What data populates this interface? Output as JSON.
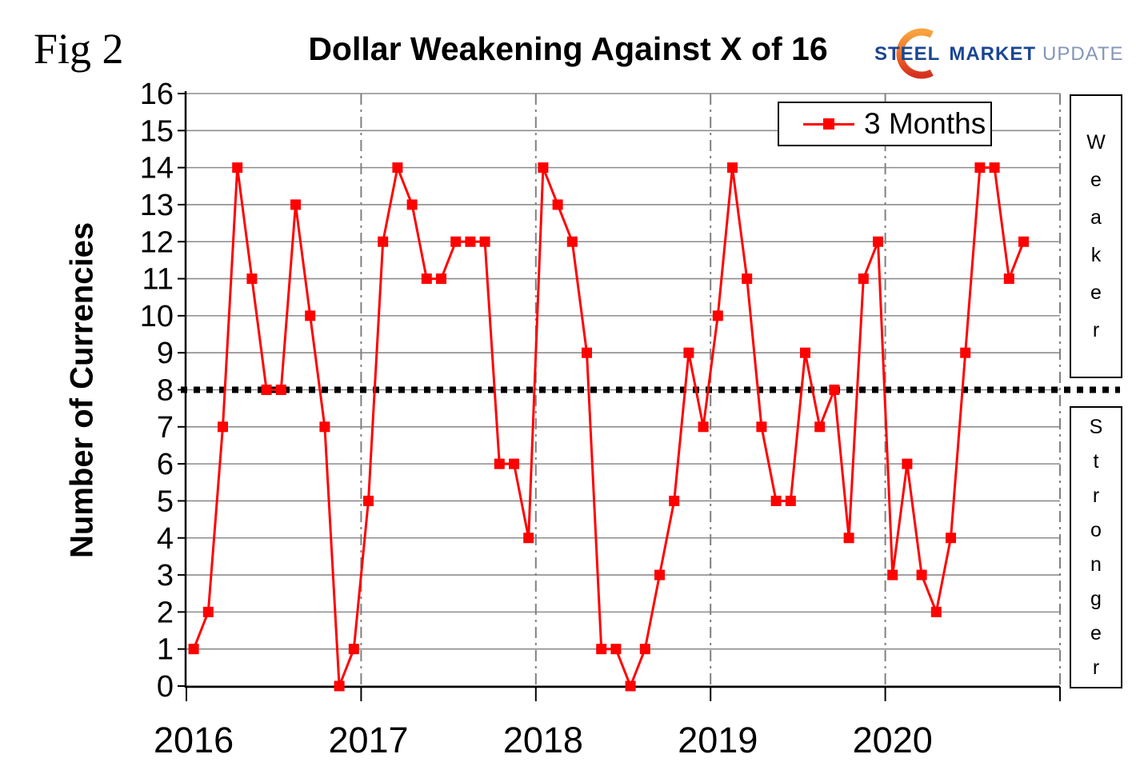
{
  "header": {
    "fig_label": "Fig 2",
    "title": "Dollar Weakening Against X of 16"
  },
  "logo": {
    "steel": "STEEL",
    "market": "MARKET",
    "update": "UPDATE",
    "steel_color": "#1B4693",
    "update_color": "#8496B8",
    "crescent_top_color": "#F7A33F",
    "crescent_bottom_color": "#D4311F"
  },
  "legend": {
    "label": "3 Months"
  },
  "side_labels": {
    "weaker": "Weaker",
    "stronger": "Stronger"
  },
  "colors": {
    "series": "#FF0000",
    "grid": "#8C8C8C",
    "dashdot_grid": "#808080",
    "axis": "#000000",
    "threshold": "#000000",
    "background": "#FFFFFF"
  },
  "chart_data": {
    "type": "line",
    "title": "Dollar Weakening Against X of 16",
    "xlabel": "",
    "ylabel": "Number of Currencies",
    "ylim": [
      0,
      16
    ],
    "ytick_step": 1,
    "grid": "horizontal solid gray lines at every integer; vertical gray dash-dot lines at each January (year boundary)",
    "legend_position": "top-right inside plot",
    "threshold": {
      "y": 8,
      "style": "thick black dotted horizontal line",
      "above_label": "Weaker",
      "below_label": "Stronger"
    },
    "x_year_ticks": [
      "2016",
      "2017",
      "2018",
      "2019",
      "2020"
    ],
    "months": [
      "2016-01",
      "2016-02",
      "2016-03",
      "2016-04",
      "2016-05",
      "2016-06",
      "2016-07",
      "2016-08",
      "2016-09",
      "2016-10",
      "2016-11",
      "2016-12",
      "2017-01",
      "2017-02",
      "2017-03",
      "2017-04",
      "2017-05",
      "2017-06",
      "2017-07",
      "2017-08",
      "2017-09",
      "2017-10",
      "2017-11",
      "2017-12",
      "2018-01",
      "2018-02",
      "2018-03",
      "2018-04",
      "2018-05",
      "2018-06",
      "2018-07",
      "2018-08",
      "2018-09",
      "2018-10",
      "2018-11",
      "2018-12",
      "2019-01",
      "2019-02",
      "2019-03",
      "2019-04",
      "2019-05",
      "2019-06",
      "2019-07",
      "2019-08",
      "2019-09",
      "2019-10",
      "2019-11",
      "2019-12",
      "2020-01",
      "2020-02",
      "2020-03",
      "2020-04",
      "2020-05",
      "2020-06",
      "2020-07",
      "2020-08",
      "2020-09",
      "2020-10"
    ],
    "series": [
      {
        "name": "3 Months",
        "color": "#FF0000",
        "marker": "square",
        "values": [
          1,
          2,
          7,
          14,
          11,
          8,
          8,
          13,
          10,
          7,
          0,
          1,
          5,
          12,
          14,
          13,
          11,
          11,
          12,
          12,
          12,
          6,
          6,
          4,
          14,
          13,
          12,
          9,
          1,
          1,
          0,
          1,
          3,
          5,
          9,
          7,
          10,
          14,
          11,
          7,
          5,
          5,
          9,
          7,
          8,
          4,
          11,
          12,
          3,
          6,
          3,
          2,
          4,
          9,
          14,
          14,
          11,
          12
        ]
      }
    ]
  }
}
